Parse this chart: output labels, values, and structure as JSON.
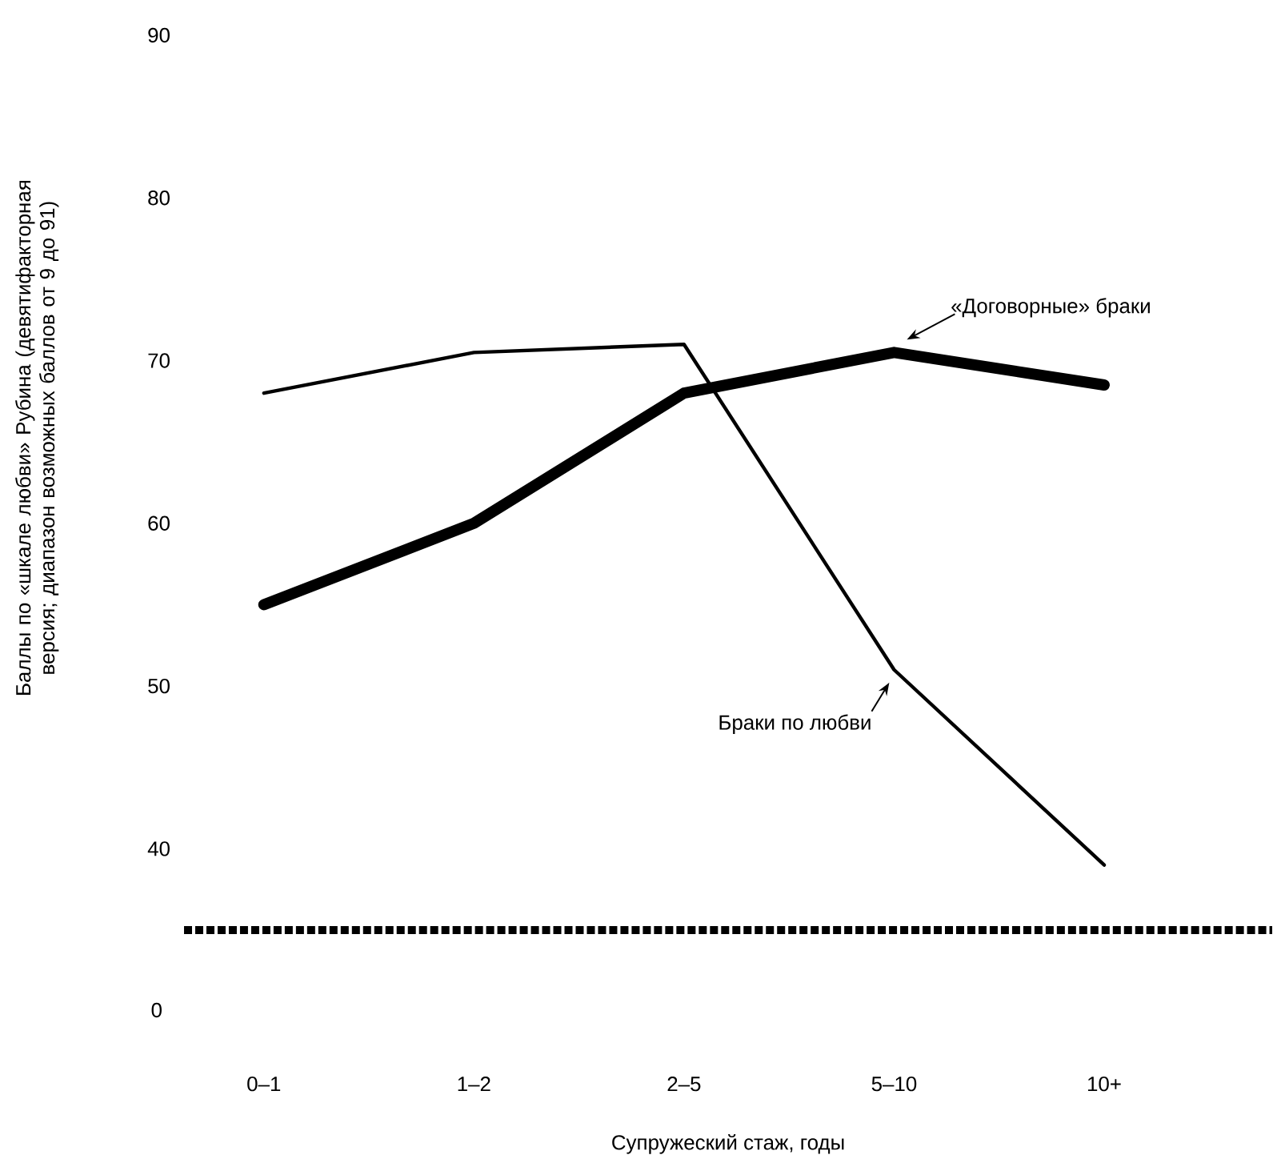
{
  "chart_data": {
    "type": "line",
    "xlabel": "Супружеский стаж, годы",
    "ylabel": "Баллы по «шкале любви» Рубина (девятифакторная версия; диапазон возможных баллов от 9 до 91)",
    "categories": [
      "0–1",
      "1–2",
      "2–5",
      "5–10",
      "10+"
    ],
    "series": [
      {
        "name": "«Договорные» браки",
        "color": "#000000",
        "values": [
          55,
          60,
          68,
          70.5,
          68.5
        ]
      },
      {
        "name": "Браки по любви",
        "color": "#000000",
        "values": [
          68,
          70.5,
          71,
          51,
          39
        ]
      }
    ],
    "annotations": [
      "0"
    ],
    "ylim": [
      35,
      90
    ],
    "yticks": [
      40,
      50,
      60,
      70,
      80,
      90
    ],
    "grid": false,
    "marker": "none",
    "line_style": "solid"
  }
}
